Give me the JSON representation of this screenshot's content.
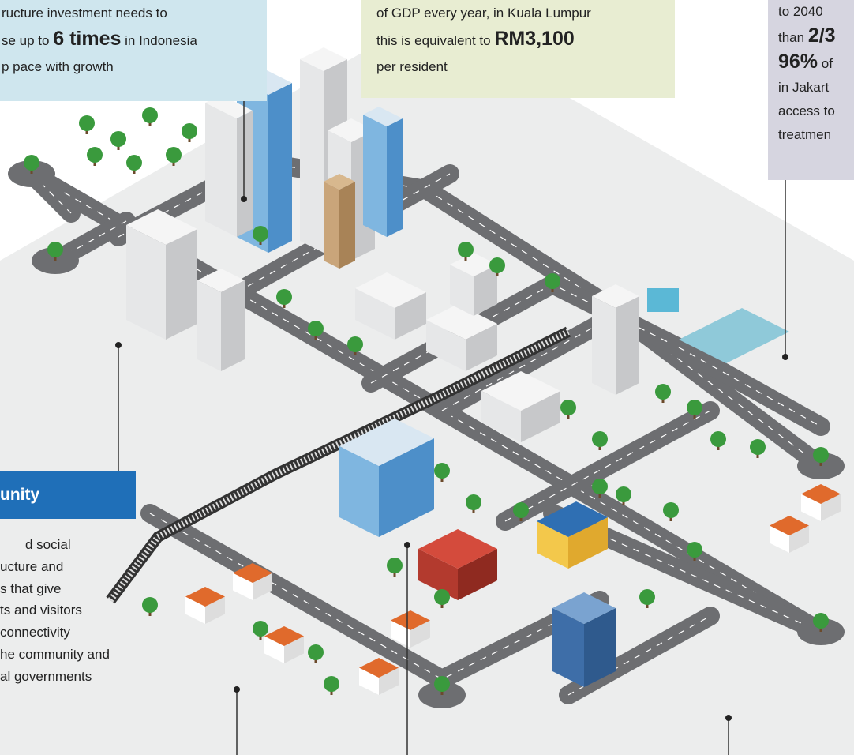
{
  "callouts": [
    {
      "lines": [
        [
          {
            "text": "ructure investment needs to"
          }
        ],
        [
          {
            "text": "se up to "
          },
          {
            "text": "6 times",
            "bold": true
          },
          {
            "text": " in Indonesia"
          }
        ],
        [
          {
            "text": "p pace with growth"
          }
        ]
      ]
    },
    {
      "lines": [
        [
          {
            "text": "of GDP every year, in Kuala Lumpur"
          }
        ],
        [
          {
            "text": "this is equivalent to "
          },
          {
            "text": "RM3,100",
            "bold": true
          }
        ],
        [
          {
            "text": "per resident"
          }
        ]
      ]
    },
    {
      "lines": [
        [
          {
            "text": "to 2040"
          }
        ],
        [
          {
            "text": "than "
          },
          {
            "text": "2/3",
            "bold": true
          }
        ],
        [
          {
            "text": "96%",
            "bold": true
          },
          {
            "text": " of"
          }
        ],
        [
          {
            "text": "in Jakart"
          }
        ],
        [
          {
            "text": "access to"
          }
        ],
        [
          {
            "text": "treatmen"
          }
        ]
      ]
    }
  ],
  "community": {
    "heading": "unity",
    "lines": [
      "d social",
      "ucture and",
      "s that give",
      "ts and visitors",
      "connectivity",
      "he community and",
      "al governments"
    ]
  }
}
